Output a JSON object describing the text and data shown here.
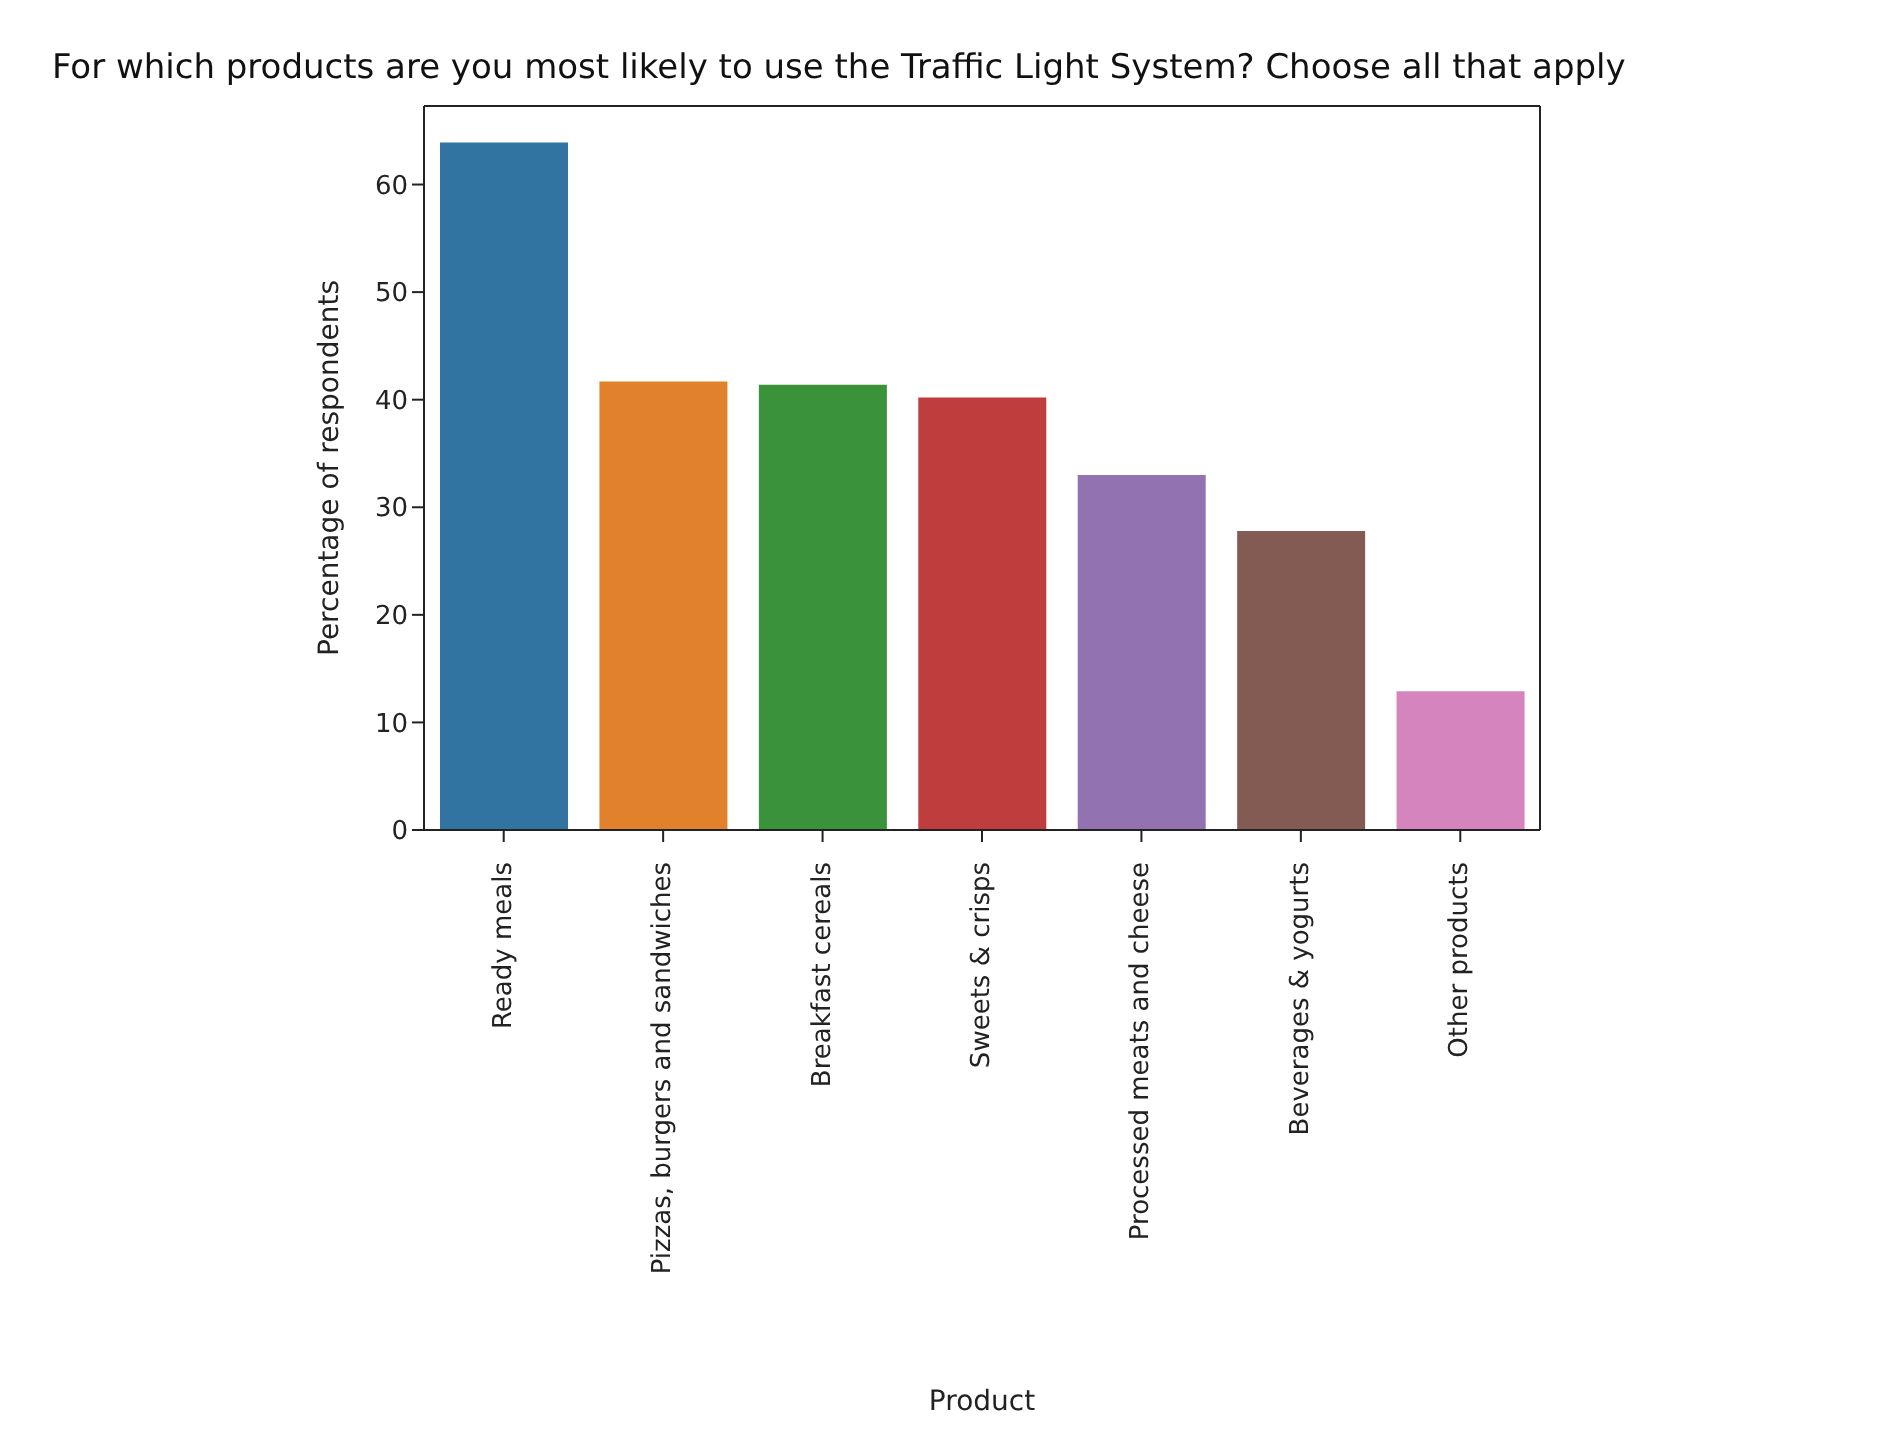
{
  "chart_data": {
    "type": "bar",
    "title": "For which products are you most likely to use the Traffic Light System? Choose all that apply",
    "xlabel": "Product",
    "ylabel": "Percentage of respondents",
    "categories": [
      "Ready meals",
      "Pizzas, burgers and sandwiches",
      "Breakfast cereals",
      "Sweets & crisps",
      "Processed meats and cheese",
      "Beverages & yogurts",
      "Other products"
    ],
    "values": [
      63.9,
      41.7,
      41.4,
      40.2,
      33.0,
      27.8,
      12.9
    ],
    "colors": [
      "#3274a1",
      "#e1812c",
      "#3a923a",
      "#c03d3e",
      "#9372b2",
      "#845b53",
      "#d684bd"
    ],
    "ylim": [
      0,
      67.3
    ],
    "yticks": [
      0,
      10,
      20,
      30,
      40,
      50,
      60
    ],
    "grid": false,
    "legend": false
  }
}
